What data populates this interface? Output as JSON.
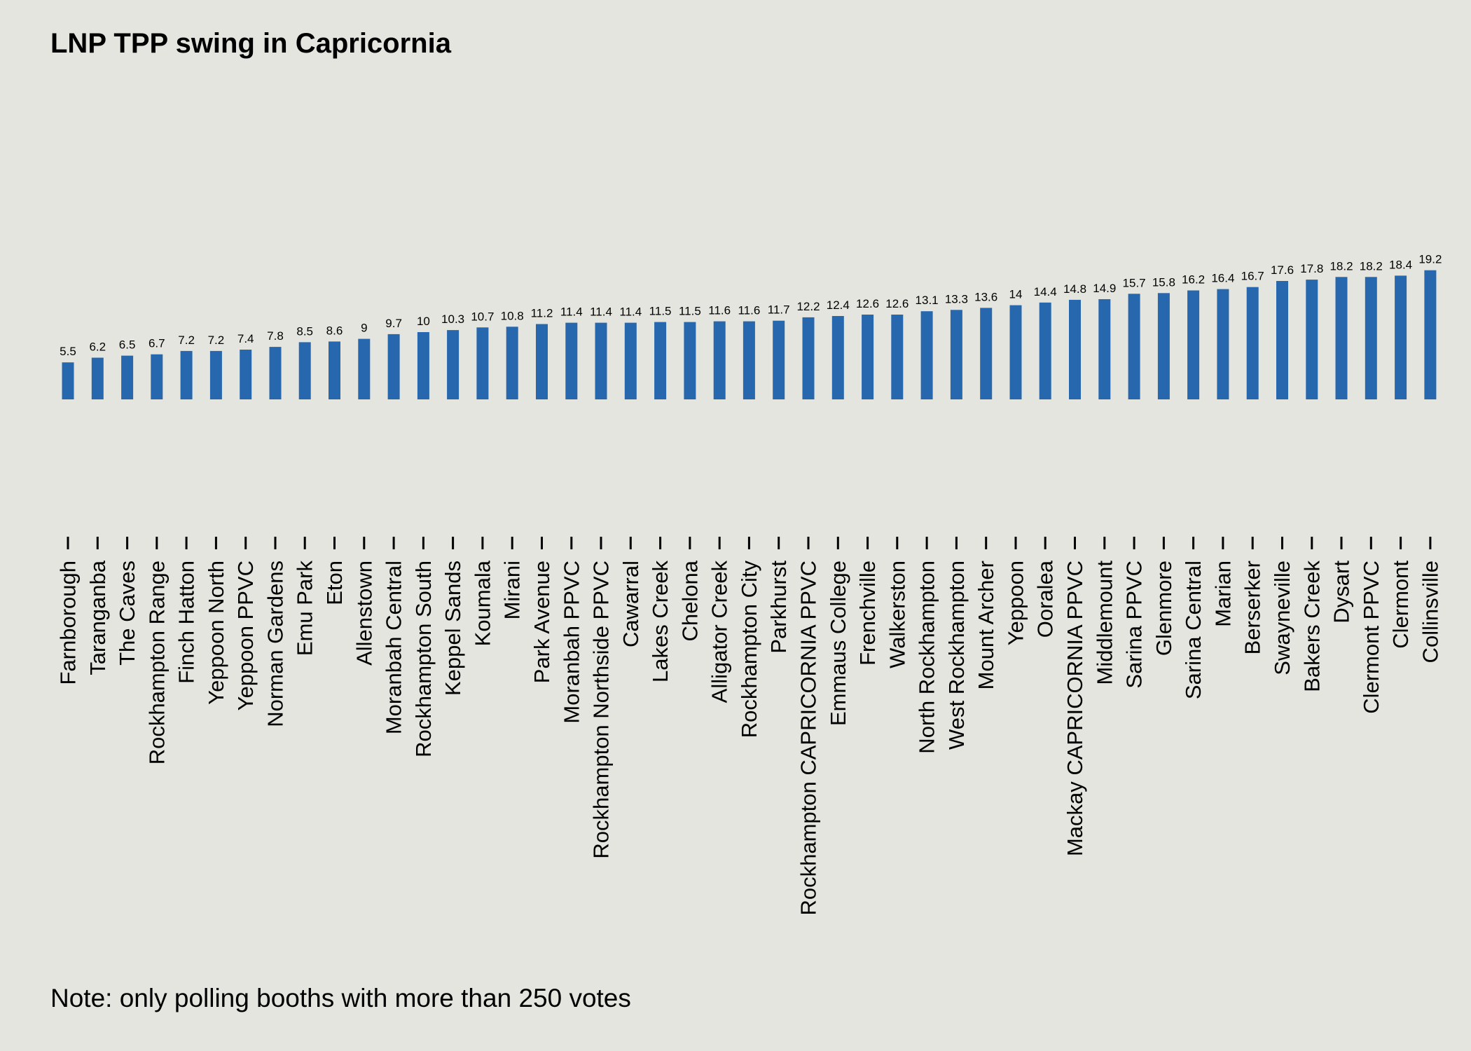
{
  "title": "LNP TPP swing in Capricornia",
  "note": "Note: only polling booths with more than 250 votes",
  "colors": {
    "bar": "#2767ad",
    "background": "#e5e5df"
  },
  "chart_data": {
    "type": "bar",
    "title": "LNP TPP swing in Capricornia",
    "xlabel": "",
    "ylabel": "",
    "grid": false,
    "legend": "none",
    "categories": [
      "Farnborough",
      "Taranganba",
      "The Caves",
      "Rockhampton Range",
      "Finch Hatton",
      "Yeppoon North",
      "Yeppoon PPVC",
      "Norman Gardens",
      "Emu Park",
      "Eton",
      "Allenstown",
      "Moranbah Central",
      "Rockhampton South",
      "Keppel Sands",
      "Koumala",
      "Mirani",
      "Park Avenue",
      "Moranbah PPVC",
      "Rockhampton Northside PPVC",
      "Cawarral",
      "Lakes Creek",
      "Chelona",
      "Alligator Creek",
      "Rockhampton City",
      "Parkhurst",
      "Rockhampton CAPRICORNIA PPVC",
      "Emmaus College",
      "Frenchville",
      "Walkerston",
      "North Rockhampton",
      "West Rockhampton",
      "Mount Archer",
      "Yeppoon",
      "Ooralea",
      "Mackay CAPRICORNIA PPVC",
      "Middlemount",
      "Sarina PPVC",
      "Glenmore",
      "Sarina Central",
      "Marian",
      "Berserker",
      "Swayneville",
      "Bakers Creek",
      "Dysart",
      "Clermont PPVC",
      "Clermont",
      "Collinsville"
    ],
    "values": [
      5.5,
      6.2,
      6.5,
      6.7,
      7.2,
      7.2,
      7.4,
      7.8,
      8.5,
      8.6,
      9,
      9.7,
      10,
      10.3,
      10.7,
      10.8,
      11.2,
      11.4,
      11.4,
      11.4,
      11.5,
      11.5,
      11.6,
      11.6,
      11.7,
      12.2,
      12.4,
      12.6,
      12.6,
      13.1,
      13.3,
      13.6,
      14,
      14.4,
      14.8,
      14.9,
      15.7,
      15.8,
      16.2,
      16.4,
      16.7,
      17.6,
      17.8,
      18.2,
      18.2,
      18.4,
      19.2
    ],
    "value_labels": [
      "5.5",
      "6.2",
      "6.5",
      "6.7",
      "7.2",
      "7.2",
      "7.4",
      "7.8",
      "8.5",
      "8.6",
      "9",
      "9.7",
      "10",
      "10.3",
      "10.7",
      "10.8",
      "11.2",
      "11.4",
      "11.4",
      "11.4",
      "11.5",
      "11.5",
      "11.6",
      "11.6",
      "11.7",
      "12.2",
      "12.4",
      "12.6",
      "12.6",
      "13.1",
      "13.3",
      "13.6",
      "14",
      "14.4",
      "14.8",
      "14.9",
      "15.7",
      "15.8",
      "16.2",
      "16.4",
      "16.7",
      "17.6",
      "17.8",
      "18.2",
      "18.2",
      "18.4",
      "19.2"
    ]
  }
}
